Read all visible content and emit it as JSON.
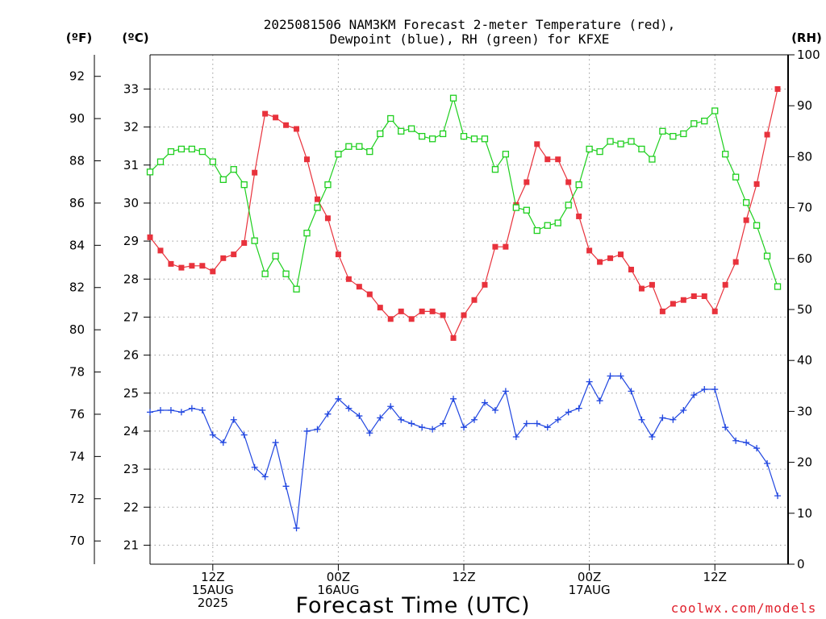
{
  "title_line1": "2025081506 NAM3KM Forecast 2-meter Temperature (red),",
  "title_line2": "Dewpoint (blue), RH (green) for KFXE",
  "unit_f": "(ºF)",
  "unit_c": "(ºC)",
  "unit_rh": "(RH)",
  "xlabel": "Forecast Time (UTC)",
  "credit": "coolwx.com/models",
  "colors": {
    "temperature": "#e8323c",
    "dewpoint": "#2046e0",
    "rh": "#1ecf1e"
  },
  "chart_data": {
    "type": "line",
    "x_start": "2025-08-15 06Z",
    "x_step_hours": 1,
    "x_range_hours_from_start": [
      0,
      61
    ],
    "x_ticks": [
      {
        "hour": 6,
        "label": [
          "12Z",
          "15AUG",
          "2025"
        ]
      },
      {
        "hour": 18,
        "label": [
          "00Z",
          "16AUG"
        ]
      },
      {
        "hour": 30,
        "label": [
          "12Z"
        ]
      },
      {
        "hour": 42,
        "label": [
          "00Z",
          "17AUG"
        ]
      },
      {
        "hour": 54,
        "label": [
          "12Z"
        ]
      }
    ],
    "celsius_axis": {
      "range": [
        20.5,
        33.9
      ],
      "ticks": [
        21,
        22,
        23,
        24,
        25,
        26,
        27,
        28,
        29,
        30,
        31,
        32,
        33
      ]
    },
    "fahrenheit_axis": {
      "ticks": [
        70,
        72,
        74,
        76,
        78,
        80,
        82,
        84,
        86,
        88,
        90,
        92
      ]
    },
    "rh_axis": {
      "range": [
        0,
        100
      ],
      "ticks": [
        0,
        10,
        20,
        30,
        40,
        50,
        60,
        70,
        80,
        90,
        100
      ]
    },
    "grid": true,
    "series": [
      {
        "key": "temperature",
        "axis": "c",
        "marker": "filled-square",
        "values": [
          29.1,
          28.75,
          28.4,
          28.3,
          28.35,
          28.35,
          28.2,
          28.55,
          28.65,
          28.95,
          30.8,
          32.35,
          32.25,
          32.05,
          31.95,
          31.15,
          30.1,
          29.6,
          28.65,
          28.0,
          27.8,
          27.6,
          27.25,
          26.95,
          27.15,
          26.95,
          27.15,
          27.15,
          27.05,
          26.45,
          27.05,
          27.45,
          27.85,
          28.85,
          28.85,
          29.95,
          30.55,
          31.55,
          31.15,
          31.15,
          30.55,
          29.65,
          28.75,
          28.45,
          28.55,
          28.65,
          28.25,
          27.75,
          27.85,
          27.15,
          27.35,
          27.45,
          27.55,
          27.55,
          27.15,
          27.85,
          28.45,
          29.55,
          30.5,
          31.8,
          33.0
        ]
      },
      {
        "key": "dewpoint",
        "axis": "c",
        "marker": "plus",
        "values": [
          24.5,
          24.55,
          24.55,
          24.5,
          24.6,
          24.55,
          23.9,
          23.7,
          24.3,
          23.9,
          23.05,
          22.8,
          23.7,
          22.55,
          21.45,
          24.0,
          24.05,
          24.45,
          24.85,
          24.6,
          24.4,
          23.95,
          24.35,
          24.65,
          24.3,
          24.2,
          24.1,
          24.05,
          24.2,
          24.85,
          24.1,
          24.3,
          24.75,
          24.55,
          25.05,
          23.85,
          24.2,
          24.2,
          24.1,
          24.3,
          24.5,
          24.6,
          25.3,
          24.8,
          25.45,
          25.45,
          25.05,
          24.3,
          23.85,
          24.35,
          24.3,
          24.55,
          24.95,
          25.1,
          25.1,
          24.1,
          23.75,
          23.7,
          23.55,
          23.15,
          22.3
        ]
      },
      {
        "key": "rh",
        "axis": "rh",
        "marker": "open-square",
        "values": [
          77,
          79,
          81,
          81.5,
          81.5,
          81,
          79,
          75.5,
          77.5,
          74.5,
          63.5,
          57,
          60.5,
          57,
          54,
          65,
          70,
          74.5,
          80.5,
          82,
          82,
          81,
          84.5,
          87.5,
          85,
          85.5,
          84,
          83.5,
          84.5,
          91.5,
          84,
          83.5,
          83.5,
          77.5,
          80.5,
          70,
          69.5,
          65.5,
          66.5,
          67,
          70.5,
          74.5,
          81.5,
          81,
          83,
          82.5,
          83,
          81.5,
          79.5,
          85,
          84,
          84.5,
          86.5,
          87,
          89,
          80.5,
          76,
          71,
          66.5,
          60.5,
          54.5
        ]
      }
    ]
  }
}
